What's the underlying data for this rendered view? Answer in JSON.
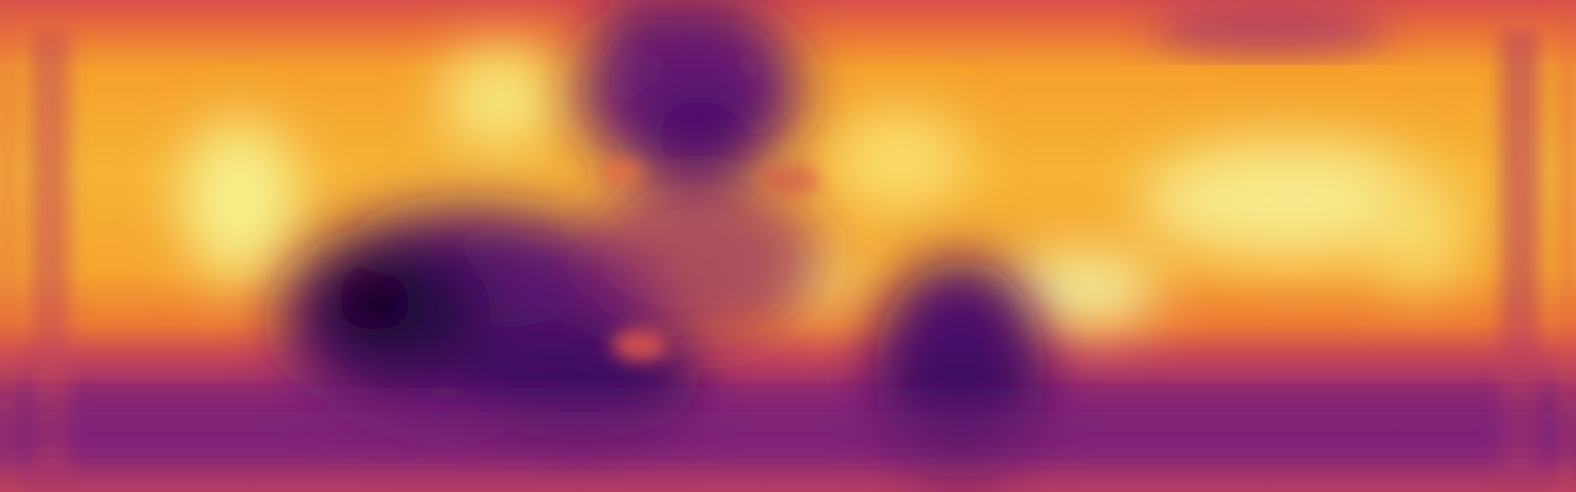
{
  "image": {
    "kind": "depth-map",
    "colormap": "inferno",
    "palette": {
      "near_black": "#0a0314",
      "deep_purple": "#3d0a5e",
      "purple": "#6b1a73",
      "magenta": "#a3326d",
      "red_orange": "#d8504a",
      "orange": "#f18a2b",
      "yellow": "#fac33a",
      "pale_yellow": "#f3f3a0"
    },
    "regions": [
      {
        "name": "band-top",
        "level": "medium"
      },
      {
        "name": "band-bright-upper",
        "level": "high"
      },
      {
        "name": "band-lower-floor",
        "level": "low"
      },
      {
        "name": "dark-left-object",
        "level": "very-low"
      },
      {
        "name": "dark-center-top-object",
        "level": "low"
      },
      {
        "name": "dark-center-bottom-object",
        "level": "low"
      },
      {
        "name": "hot-spot-right",
        "level": "very-high"
      },
      {
        "name": "hot-spot-left",
        "level": "very-high"
      }
    ]
  }
}
